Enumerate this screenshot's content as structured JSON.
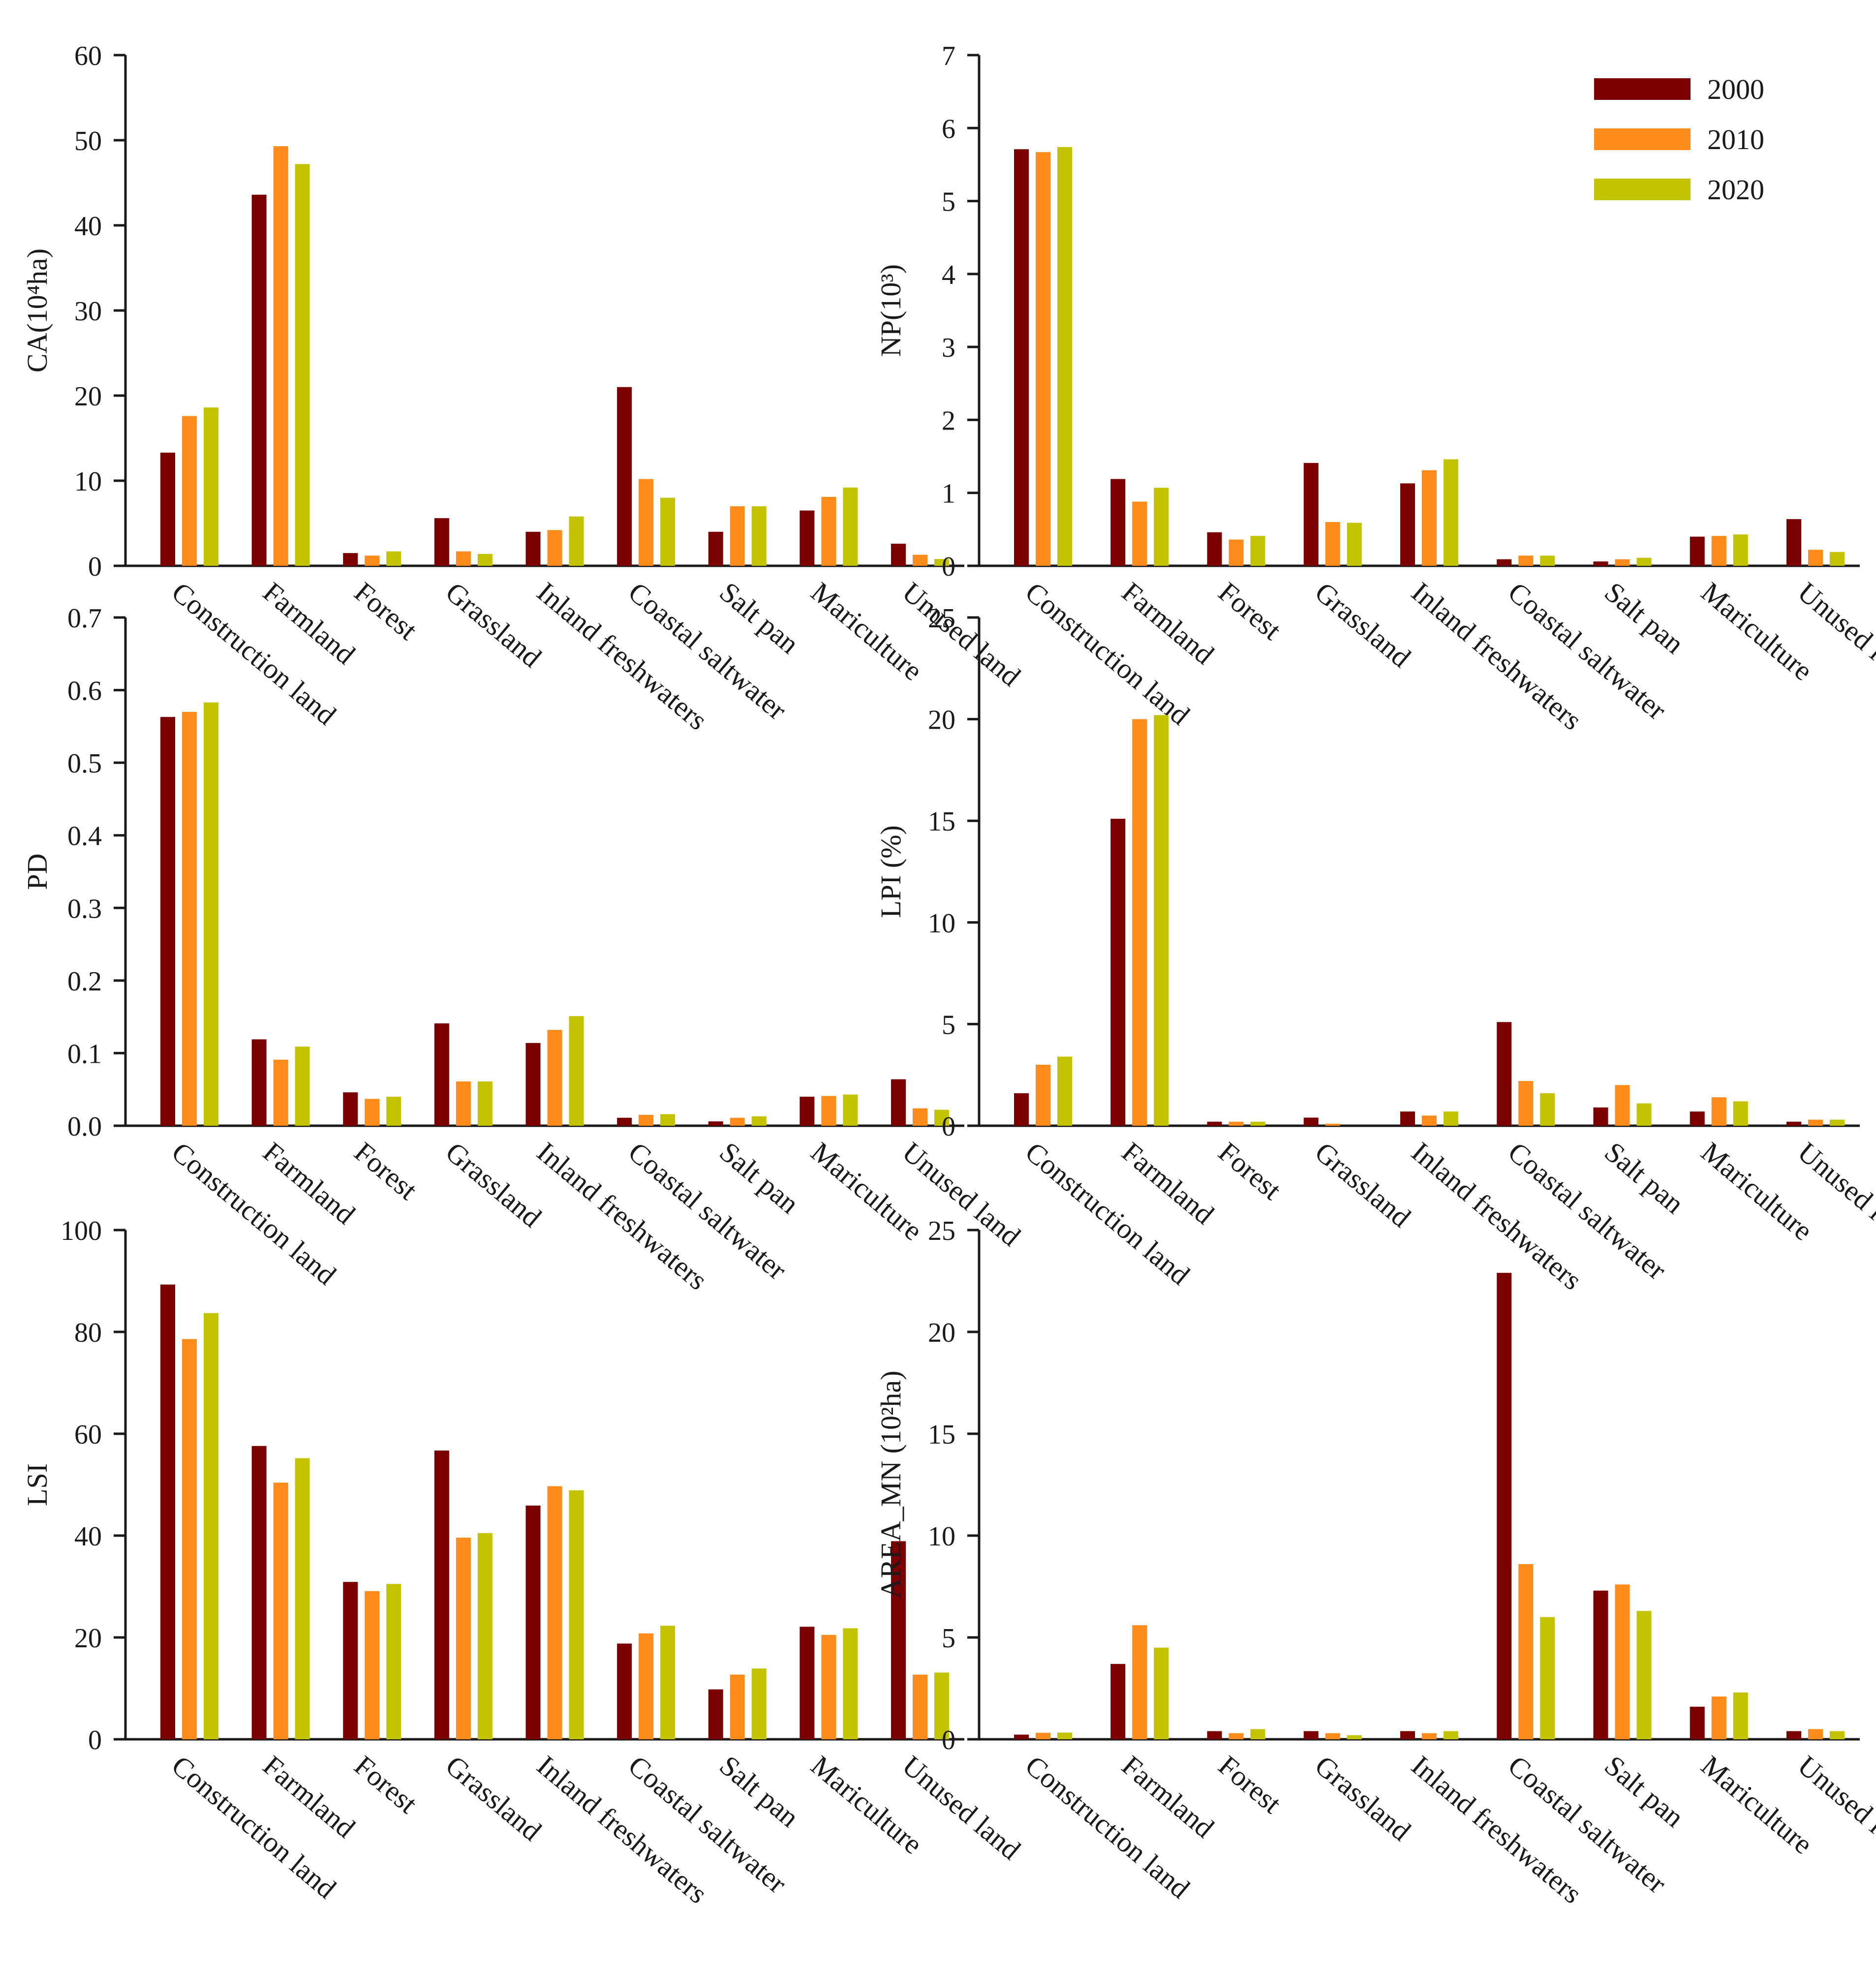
{
  "colors": {
    "2000": "#7b0000",
    "2010": "#ff8c1a",
    "2020": "#c3c300"
  },
  "legend": [
    {
      "label": "2000",
      "color": "#7b0000"
    },
    {
      "label": "2010",
      "color": "#ff8c1a"
    },
    {
      "label": "2020",
      "color": "#c3c300"
    }
  ],
  "chart_data": [
    {
      "type": "bar",
      "ylabel": "CA(10⁴ha)",
      "ylim": [
        0,
        60
      ],
      "yticks": [
        "0",
        "10",
        "20",
        "30",
        "40",
        "50",
        "60"
      ],
      "categories": [
        "Construction land",
        "Farmland",
        "Forest",
        "Grassland",
        "Inland freshwaters",
        "Coastal saltwater",
        "Salt pan",
        "Mariculture",
        "Unused land"
      ],
      "series": [
        {
          "name": "2000",
          "values": [
            13.3,
            43.6,
            1.5,
            5.6,
            4.0,
            21.0,
            4.0,
            6.5,
            2.6
          ]
        },
        {
          "name": "2010",
          "values": [
            17.6,
            49.3,
            1.2,
            1.7,
            4.2,
            10.2,
            7.0,
            8.1,
            1.3
          ]
        },
        {
          "name": "2020",
          "values": [
            18.6,
            47.2,
            1.7,
            1.4,
            5.8,
            8.0,
            7.0,
            9.2,
            0.8
          ]
        }
      ]
    },
    {
      "type": "bar",
      "ylabel": "NP(10³)",
      "ylim": [
        0,
        7
      ],
      "yticks": [
        "0",
        "1",
        "2",
        "3",
        "4",
        "5",
        "6",
        "7"
      ],
      "categories": [
        "Construction land",
        "Farmland",
        "Forest",
        "Grassland",
        "Inland freshwaters",
        "Coastal saltwater",
        "Salt pan",
        "Mariculture",
        "Unused land"
      ],
      "series": [
        {
          "name": "2000",
          "values": [
            5.71,
            1.19,
            0.46,
            1.41,
            1.13,
            0.09,
            0.06,
            0.4,
            0.64
          ]
        },
        {
          "name": "2010",
          "values": [
            5.67,
            0.88,
            0.36,
            0.6,
            1.31,
            0.14,
            0.09,
            0.41,
            0.22
          ]
        },
        {
          "name": "2020",
          "values": [
            5.74,
            1.07,
            0.41,
            0.59,
            1.46,
            0.14,
            0.11,
            0.43,
            0.19
          ]
        }
      ]
    },
    {
      "type": "bar",
      "ylabel": "PD",
      "ylim": [
        0,
        0.7
      ],
      "yticks": [
        "0.0",
        "0.1",
        "0.2",
        "0.3",
        "0.4",
        "0.5",
        "0.6",
        "0.7"
      ],
      "categories": [
        "Construction land",
        "Farmland",
        "Forest",
        "Grassland",
        "Inland freshwaters",
        "Coastal saltwater",
        "Salt pan",
        "Mariculture",
        "Unused land"
      ],
      "series": [
        {
          "name": "2000",
          "values": [
            0.563,
            0.119,
            0.046,
            0.141,
            0.114,
            0.011,
            0.006,
            0.04,
            0.064
          ]
        },
        {
          "name": "2010",
          "values": [
            0.57,
            0.091,
            0.037,
            0.061,
            0.132,
            0.015,
            0.011,
            0.041,
            0.024
          ]
        },
        {
          "name": "2020",
          "values": [
            0.583,
            0.109,
            0.04,
            0.061,
            0.151,
            0.016,
            0.013,
            0.043,
            0.022
          ]
        }
      ]
    },
    {
      "type": "bar",
      "ylabel": "LPI (%)",
      "ylim": [
        0,
        25
      ],
      "yticks": [
        "0",
        "5",
        "10",
        "15",
        "20",
        "25"
      ],
      "categories": [
        "Construction land",
        "Farmland",
        "Forest",
        "Grassland",
        "Inland freshwaters",
        "Coastal saltwater",
        "Salt pan",
        "Mariculture",
        "Unused land"
      ],
      "series": [
        {
          "name": "2000",
          "values": [
            1.6,
            15.1,
            0.2,
            0.4,
            0.7,
            5.1,
            0.9,
            0.7,
            0.2
          ]
        },
        {
          "name": "2010",
          "values": [
            3.0,
            20.0,
            0.2,
            0.1,
            0.5,
            2.2,
            2.0,
            1.4,
            0.3
          ]
        },
        {
          "name": "2020",
          "values": [
            3.4,
            20.2,
            0.2,
            0.0,
            0.7,
            1.6,
            1.1,
            1.2,
            0.3
          ]
        }
      ]
    },
    {
      "type": "bar",
      "ylabel": "LSI",
      "ylim": [
        0,
        100
      ],
      "yticks": [
        "0",
        "20",
        "40",
        "60",
        "80",
        "100"
      ],
      "categories": [
        "Construction land",
        "Farmland",
        "Forest",
        "Grassland",
        "Inland freshwaters",
        "Coastal saltwater",
        "Salt pan",
        "Mariculture",
        "Unused land"
      ],
      "series": [
        {
          "name": "2000",
          "values": [
            89.3,
            57.6,
            30.9,
            56.7,
            45.9,
            18.8,
            9.8,
            22.1,
            38.9
          ]
        },
        {
          "name": "2010",
          "values": [
            78.6,
            50.4,
            29.1,
            39.6,
            49.7,
            20.8,
            12.7,
            20.5,
            12.7
          ]
        },
        {
          "name": "2020",
          "values": [
            83.7,
            55.2,
            30.5,
            40.5,
            48.9,
            22.3,
            13.9,
            21.8,
            13.1
          ]
        }
      ]
    },
    {
      "type": "bar",
      "ylabel": "AREA_MN (10²ha)",
      "ylim": [
        0,
        25
      ],
      "yticks": [
        "0",
        "5",
        "10",
        "15",
        "20",
        "25"
      ],
      "categories": [
        "Construction land",
        "Farmland",
        "Forest",
        "Grassland",
        "Inland freshwaters",
        "Coastal saltwater",
        "Salt pan",
        "Mariculture",
        "Unused land"
      ],
      "series": [
        {
          "name": "2000",
          "values": [
            0.23,
            3.7,
            0.4,
            0.4,
            0.4,
            22.9,
            7.3,
            1.6,
            0.4
          ]
        },
        {
          "name": "2010",
          "values": [
            0.32,
            5.6,
            0.3,
            0.3,
            0.3,
            8.6,
            7.6,
            2.1,
            0.5
          ]
        },
        {
          "name": "2020",
          "values": [
            0.33,
            4.5,
            0.5,
            0.2,
            0.4,
            6.0,
            6.3,
            2.3,
            0.4
          ]
        }
      ]
    }
  ]
}
